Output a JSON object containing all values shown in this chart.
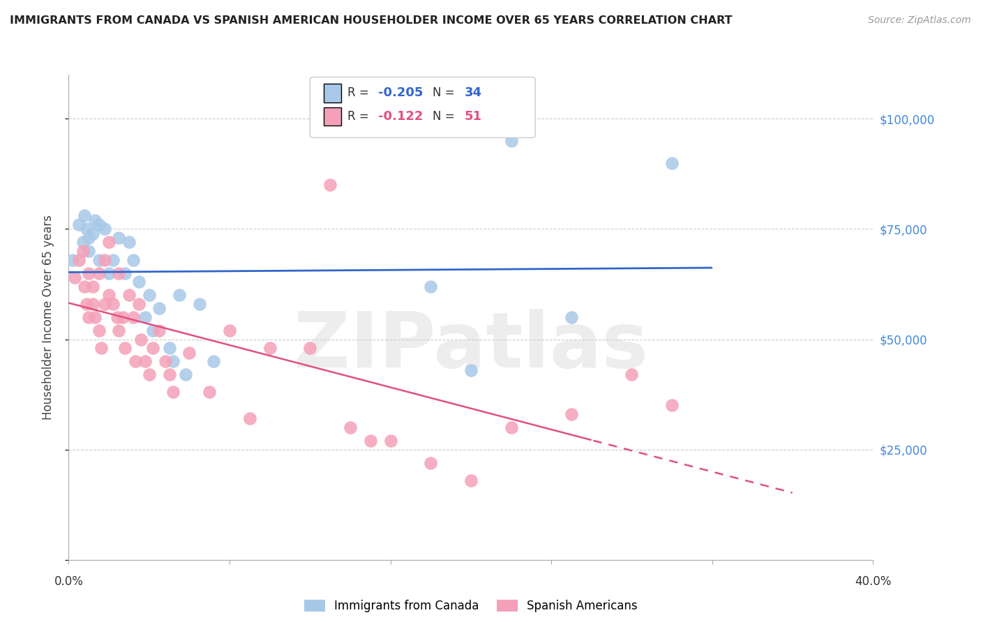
{
  "title": "IMMIGRANTS FROM CANADA VS SPANISH AMERICAN HOUSEHOLDER INCOME OVER 65 YEARS CORRELATION CHART",
  "source": "Source: ZipAtlas.com",
  "ylabel": "Householder Income Over 65 years",
  "watermark": "ZIPatlas",
  "legend_1_label": "Immigrants from Canada",
  "legend_2_label": "Spanish Americans",
  "r1": -0.205,
  "n1": 34,
  "r2": -0.122,
  "n2": 51,
  "xlim": [
    0.0,
    0.4
  ],
  "ylim": [
    0,
    110000
  ],
  "blue_color": "#a8c8e8",
  "pink_color": "#f4a0b8",
  "blue_line_color": "#3366cc",
  "pink_line_color": "#e05080",
  "axis_label_color": "#4488dd",
  "background_color": "#ffffff",
  "canada_x": [
    0.002,
    0.005,
    0.007,
    0.008,
    0.009,
    0.01,
    0.01,
    0.012,
    0.013,
    0.015,
    0.015,
    0.018,
    0.02,
    0.022,
    0.025,
    0.028,
    0.03,
    0.032,
    0.035,
    0.038,
    0.04,
    0.042,
    0.045,
    0.05,
    0.052,
    0.055,
    0.058,
    0.065,
    0.072,
    0.18,
    0.2,
    0.22,
    0.3,
    0.25
  ],
  "canada_y": [
    68000,
    76000,
    72000,
    78000,
    75000,
    73000,
    70000,
    74000,
    77000,
    76000,
    68000,
    75000,
    65000,
    68000,
    73000,
    65000,
    72000,
    68000,
    63000,
    55000,
    60000,
    52000,
    57000,
    48000,
    45000,
    60000,
    42000,
    58000,
    45000,
    62000,
    43000,
    95000,
    90000,
    55000
  ],
  "spanish_x": [
    0.003,
    0.005,
    0.007,
    0.008,
    0.009,
    0.01,
    0.01,
    0.012,
    0.012,
    0.013,
    0.015,
    0.015,
    0.016,
    0.018,
    0.018,
    0.02,
    0.02,
    0.022,
    0.024,
    0.025,
    0.025,
    0.027,
    0.028,
    0.03,
    0.032,
    0.033,
    0.035,
    0.036,
    0.038,
    0.04,
    0.042,
    0.045,
    0.048,
    0.05,
    0.052,
    0.06,
    0.07,
    0.08,
    0.09,
    0.1,
    0.12,
    0.13,
    0.14,
    0.15,
    0.16,
    0.18,
    0.2,
    0.22,
    0.25,
    0.28,
    0.3
  ],
  "spanish_y": [
    64000,
    68000,
    70000,
    62000,
    58000,
    65000,
    55000,
    62000,
    58000,
    55000,
    65000,
    52000,
    48000,
    68000,
    58000,
    72000,
    60000,
    58000,
    55000,
    65000,
    52000,
    55000,
    48000,
    60000,
    55000,
    45000,
    58000,
    50000,
    45000,
    42000,
    48000,
    52000,
    45000,
    42000,
    38000,
    47000,
    38000,
    52000,
    32000,
    48000,
    48000,
    85000,
    30000,
    27000,
    27000,
    22000,
    18000,
    30000,
    33000,
    42000,
    35000
  ]
}
